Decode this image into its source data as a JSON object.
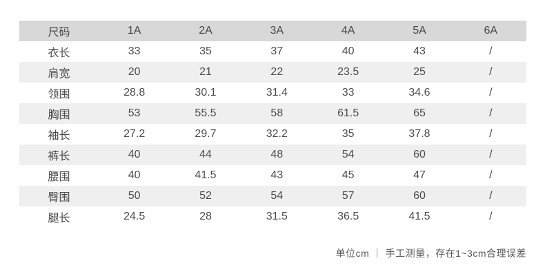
{
  "table": {
    "header": [
      "尺码",
      "1A",
      "2A",
      "3A",
      "4A",
      "5A",
      "6A"
    ],
    "rows": [
      {
        "label": "衣长",
        "values": [
          "33",
          "35",
          "37",
          "40",
          "43",
          "/"
        ]
      },
      {
        "label": "肩宽",
        "values": [
          "20",
          "21",
          "22",
          "23.5",
          "25",
          "/"
        ]
      },
      {
        "label": "领围",
        "values": [
          "28.8",
          "30.1",
          "31.4",
          "33",
          "34.6",
          "/"
        ]
      },
      {
        "label": "胸围",
        "values": [
          "53",
          "55.5",
          "58",
          "61.5",
          "65",
          "/"
        ]
      },
      {
        "label": "袖长",
        "values": [
          "27.2",
          "29.7",
          "32.2",
          "35",
          "37.8",
          "/"
        ]
      },
      {
        "label": "裤长",
        "values": [
          "40",
          "44",
          "48",
          "54",
          "60",
          "/"
        ]
      },
      {
        "label": "腰围",
        "values": [
          "40",
          "41.5",
          "43",
          "45",
          "47",
          "/"
        ]
      },
      {
        "label": "臀围",
        "values": [
          "50",
          "52",
          "54",
          "57",
          "60",
          "/"
        ]
      },
      {
        "label": "腿长",
        "values": [
          "24.5",
          "28",
          "31.5",
          "36.5",
          "41.5",
          "/"
        ]
      }
    ]
  },
  "footer": {
    "note": "单位cm ｜ 手工测量，存在1~3cm合理误差"
  },
  "colors": {
    "header_bg": "#d8d8d8",
    "stripe_bg": "#efefef",
    "text": "#4c4c4c",
    "footer_text": "#595959"
  }
}
